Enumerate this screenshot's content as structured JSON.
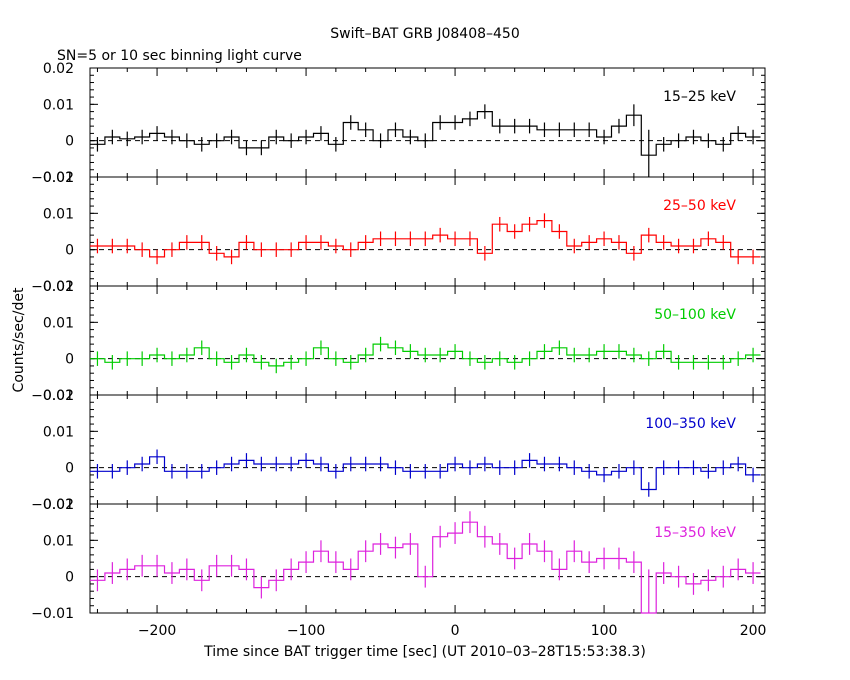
{
  "title": "Swift–BAT GRB J08408–450",
  "subtitle": "SN=5 or 10 sec binning light curve",
  "xlabel": "Time since BAT trigger time [sec] (UT 2010–03–28T15:53:38.3)",
  "ylabel": "Counts/sec/det",
  "chart_data": {
    "type": "line",
    "title": "Swift–BAT GRB J08408–450",
    "subtitle": "SN=5 or 10 sec binning light curve",
    "xlabel": "Time since BAT trigger time [sec] (UT 2010–03–28T15:53:38.3)",
    "ylabel": "Counts/sec/det",
    "xlim": [
      -245,
      208
    ],
    "xticks": [
      -200,
      -100,
      0,
      100,
      200
    ],
    "x": [
      -240,
      -230,
      -220,
      -210,
      -200,
      -190,
      -180,
      -170,
      -160,
      -150,
      -140,
      -130,
      -120,
      -110,
      -100,
      -90,
      -80,
      -70,
      -60,
      -50,
      -40,
      -30,
      -20,
      -10,
      0,
      10,
      20,
      30,
      40,
      50,
      60,
      70,
      80,
      90,
      100,
      110,
      120,
      130,
      140,
      150,
      160,
      170,
      180,
      190,
      200
    ],
    "bin_width": 10,
    "panels": [
      {
        "name": "15–25 keV",
        "color": "#000000",
        "ylim": [
          -0.01,
          0.02
        ],
        "yticks": [
          -0.01,
          0,
          0.01,
          0.02
        ],
        "ytick_labels": [
          "−0.01",
          "0",
          "0.01",
          "0.02"
        ],
        "values": [
          -0.001,
          0.001,
          0.0005,
          0.001,
          0.002,
          0.001,
          0.0,
          -0.001,
          0.0,
          0.001,
          -0.002,
          -0.002,
          0.001,
          0.0,
          0.001,
          0.002,
          -0.001,
          0.005,
          0.003,
          0.0,
          0.003,
          0.001,
          0.0,
          0.005,
          0.005,
          0.006,
          0.008,
          0.004,
          0.004,
          0.004,
          0.003,
          0.003,
          0.003,
          0.003,
          0.001,
          0.004,
          0.007,
          -0.004,
          -0.001,
          0.0,
          0.001,
          0.0,
          -0.001,
          0.002,
          0.001
        ],
        "errors": [
          0.002,
          0.002,
          0.002,
          0.002,
          0.002,
          0.002,
          0.002,
          0.002,
          0.002,
          0.002,
          0.002,
          0.002,
          0.002,
          0.002,
          0.002,
          0.002,
          0.002,
          0.002,
          0.002,
          0.002,
          0.002,
          0.002,
          0.002,
          0.002,
          0.002,
          0.002,
          0.002,
          0.002,
          0.002,
          0.002,
          0.002,
          0.002,
          0.002,
          0.002,
          0.002,
          0.002,
          0.003,
          0.007,
          0.002,
          0.002,
          0.002,
          0.002,
          0.002,
          0.002,
          0.002
        ]
      },
      {
        "name": "25–50 keV",
        "color": "#ff0000",
        "ylim": [
          -0.01,
          0.02
        ],
        "yticks": [
          -0.01,
          0,
          0.01,
          0.02
        ],
        "ytick_labels": [
          "−0.01",
          "0",
          "0.01",
          "0.02"
        ],
        "values": [
          0.001,
          0.001,
          0.001,
          0.0,
          -0.002,
          0.0,
          0.002,
          0.002,
          -0.001,
          -0.002,
          0.002,
          0.0,
          0.0,
          0.0,
          0.002,
          0.002,
          0.001,
          0.0,
          0.002,
          0.003,
          0.003,
          0.003,
          0.003,
          0.004,
          0.003,
          0.003,
          -0.001,
          0.007,
          0.005,
          0.007,
          0.008,
          0.005,
          0.001,
          0.002,
          0.003,
          0.002,
          -0.001,
          0.004,
          0.002,
          0.001,
          0.001,
          0.003,
          0.002,
          -0.002,
          -0.002
        ],
        "errors": [
          0.002,
          0.002,
          0.002,
          0.002,
          0.002,
          0.002,
          0.002,
          0.002,
          0.002,
          0.002,
          0.002,
          0.002,
          0.002,
          0.002,
          0.002,
          0.002,
          0.002,
          0.002,
          0.002,
          0.002,
          0.002,
          0.002,
          0.002,
          0.002,
          0.002,
          0.002,
          0.002,
          0.002,
          0.002,
          0.002,
          0.002,
          0.002,
          0.002,
          0.002,
          0.002,
          0.002,
          0.002,
          0.002,
          0.002,
          0.002,
          0.002,
          0.002,
          0.002,
          0.002,
          0.002
        ]
      },
      {
        "name": "50–100 keV",
        "color": "#00cc00",
        "ylim": [
          -0.01,
          0.02
        ],
        "yticks": [
          -0.01,
          0,
          0.01,
          0.02
        ],
        "ytick_labels": [
          "−0.01",
          "0",
          "0.01",
          "0.02"
        ],
        "values": [
          0.0,
          -0.001,
          0.0,
          0.0,
          0.001,
          0.0,
          0.001,
          0.003,
          0.0,
          -0.001,
          0.001,
          -0.001,
          -0.002,
          -0.001,
          0.0,
          0.003,
          0.0,
          -0.001,
          0.001,
          0.004,
          0.003,
          0.002,
          0.001,
          0.001,
          0.002,
          0.0,
          -0.001,
          0.0,
          -0.001,
          0.0,
          0.002,
          0.003,
          0.001,
          0.001,
          0.002,
          0.002,
          0.001,
          0.0,
          0.002,
          -0.001,
          -0.001,
          -0.001,
          -0.001,
          0.0,
          0.001
        ],
        "errors": [
          0.002,
          0.002,
          0.002,
          0.002,
          0.002,
          0.002,
          0.002,
          0.002,
          0.002,
          0.002,
          0.002,
          0.002,
          0.002,
          0.002,
          0.002,
          0.002,
          0.002,
          0.002,
          0.002,
          0.002,
          0.002,
          0.002,
          0.002,
          0.002,
          0.002,
          0.002,
          0.002,
          0.002,
          0.002,
          0.002,
          0.002,
          0.002,
          0.002,
          0.002,
          0.002,
          0.002,
          0.002,
          0.002,
          0.002,
          0.002,
          0.002,
          0.002,
          0.002,
          0.002,
          0.002
        ]
      },
      {
        "name": "100–350 keV",
        "color": "#0000cc",
        "ylim": [
          -0.01,
          0.02
        ],
        "yticks": [
          -0.01,
          0,
          0.01,
          0.02
        ],
        "ytick_labels": [
          "−0.01",
          "0",
          "0.01",
          "0.02"
        ],
        "values": [
          -0.001,
          -0.001,
          0.0,
          0.001,
          0.003,
          -0.001,
          -0.001,
          -0.001,
          0.0,
          0.001,
          0.002,
          0.001,
          0.001,
          0.001,
          0.002,
          0.001,
          -0.001,
          0.001,
          0.001,
          0.001,
          0.0,
          -0.001,
          -0.001,
          -0.001,
          0.001,
          0.0,
          0.001,
          0.0,
          0.0,
          0.002,
          0.001,
          0.001,
          0.0,
          -0.001,
          -0.002,
          -0.001,
          0.0,
          -0.006,
          0.0,
          0.0,
          0.0,
          -0.001,
          0.0,
          0.001,
          -0.002
        ],
        "errors": [
          0.002,
          0.002,
          0.002,
          0.002,
          0.002,
          0.002,
          0.002,
          0.002,
          0.002,
          0.002,
          0.002,
          0.002,
          0.002,
          0.002,
          0.002,
          0.002,
          0.002,
          0.002,
          0.002,
          0.002,
          0.002,
          0.002,
          0.002,
          0.002,
          0.002,
          0.002,
          0.002,
          0.002,
          0.002,
          0.002,
          0.002,
          0.002,
          0.002,
          0.002,
          0.002,
          0.002,
          0.002,
          0.002,
          0.002,
          0.002,
          0.002,
          0.002,
          0.002,
          0.002,
          0.002
        ]
      },
      {
        "name": "15–350 keV",
        "color": "#dd22dd",
        "ylim": [
          -0.01,
          0.02
        ],
        "yticks": [
          -0.01,
          0,
          0.01,
          0.02
        ],
        "ytick_labels": [
          "−0.01",
          "0",
          "0.01",
          "0.02"
        ],
        "values": [
          -0.001,
          0.001,
          0.002,
          0.003,
          0.003,
          0.001,
          0.002,
          -0.001,
          0.003,
          0.003,
          0.002,
          -0.003,
          -0.001,
          0.002,
          0.004,
          0.007,
          0.004,
          0.002,
          0.007,
          0.009,
          0.008,
          0.009,
          0.0,
          0.011,
          0.012,
          0.015,
          0.011,
          0.009,
          0.005,
          0.009,
          0.007,
          0.002,
          0.007,
          0.004,
          0.005,
          0.005,
          0.004,
          -0.01,
          0.001,
          0.0,
          -0.002,
          -0.001,
          0.0,
          0.002,
          0.001
        ],
        "errors": [
          0.003,
          0.003,
          0.003,
          0.003,
          0.003,
          0.003,
          0.003,
          0.003,
          0.003,
          0.003,
          0.003,
          0.003,
          0.003,
          0.003,
          0.003,
          0.003,
          0.003,
          0.003,
          0.003,
          0.003,
          0.003,
          0.003,
          0.003,
          0.003,
          0.003,
          0.003,
          0.003,
          0.003,
          0.003,
          0.003,
          0.003,
          0.003,
          0.003,
          0.003,
          0.003,
          0.003,
          0.003,
          0.012,
          0.003,
          0.003,
          0.003,
          0.003,
          0.003,
          0.003,
          0.003
        ]
      }
    ]
  }
}
